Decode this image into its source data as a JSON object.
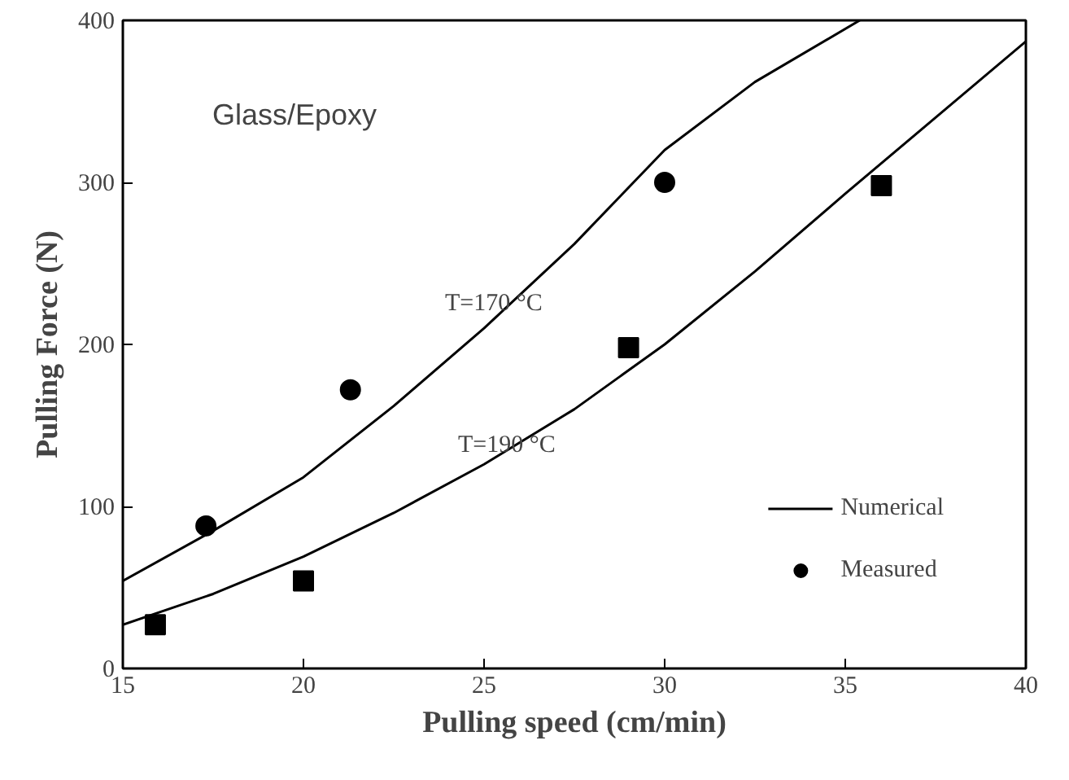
{
  "chart_data": {
    "type": "line",
    "xlabel": "Pulling speed (cm/min)",
    "ylabel": "Pulling Force (N)",
    "xlim": [
      15,
      40
    ],
    "ylim": [
      0,
      400
    ],
    "xticks": [
      15,
      20,
      25,
      30,
      35,
      40
    ],
    "yticks": [
      0,
      100,
      200,
      300,
      400
    ],
    "grid": false,
    "legend": "bottom right",
    "series": [
      {
        "name": "Numerical",
        "color": "#000000",
        "marker": "none",
        "x": [
          15,
          17.5,
          20,
          22.5,
          25,
          27.5,
          30,
          32.5,
          35.4
        ],
        "values": [
          54,
          85,
          118,
          162,
          210,
          262,
          320,
          362,
          400
        ]
      },
      {
        "color": "#000000",
        "marker": "none",
        "x": [
          15,
          17.5,
          20,
          22.5,
          25,
          27.5,
          30,
          32.5,
          35,
          37.5,
          40
        ],
        "values": [
          27,
          46,
          69,
          96,
          126,
          160,
          200,
          245,
          293,
          340,
          387
        ]
      },
      {
        "name": "Measured",
        "type": "scatter",
        "color": "#000000",
        "marker": "circle",
        "x": [
          17.3,
          21.3,
          30
        ],
        "values": [
          88,
          172,
          300
        ]
      },
      {
        "type": "scatter",
        "color": "#000000",
        "marker": "square",
        "x": [
          15.9,
          20,
          29,
          36
        ],
        "values": [
          27,
          54,
          198,
          298
        ]
      }
    ],
    "annotations": [
      "Glass/Epoxy",
      "T=170 °C",
      "T=190 °C"
    ]
  }
}
